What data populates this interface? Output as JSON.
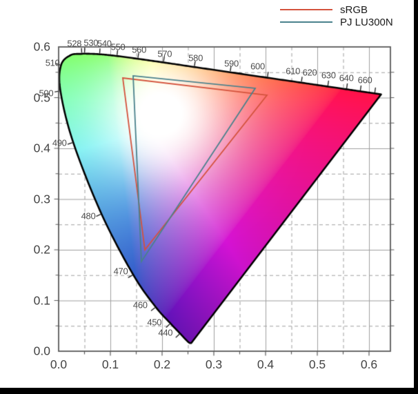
{
  "legend": {
    "items": [
      {
        "label": "sRGB",
        "color": "#d4523c"
      },
      {
        "label": "PJ LU300N",
        "color": "#49818c"
      }
    ]
  },
  "chart_data": {
    "type": "area",
    "variant": "CIE 1976 UCS chromaticity diagram (u'v') with colour gamut triangles",
    "title": "",
    "xlabel": "",
    "ylabel": "",
    "xlim": [
      0.0,
      0.6413
    ],
    "ylim": [
      0.0,
      0.6
    ],
    "grid": "solid major every 0.1, dashed minor every 0.05",
    "legend_position": "top-right",
    "x_ticks": [
      "0.0",
      "0.1",
      "0.2",
      "0.3",
      "0.4",
      "0.5",
      "0.6"
    ],
    "y_ticks": [
      "0.0",
      "0.1",
      "0.2",
      "0.3",
      "0.4",
      "0.5",
      "0.6"
    ],
    "wavelength_labels": [
      "440",
      "450",
      "460",
      "470",
      "480",
      "490",
      "500",
      "510",
      "528",
      "530",
      "540",
      "550",
      "560",
      "570",
      "580",
      "590",
      "600",
      "610",
      "620",
      "630",
      "640",
      "660"
    ],
    "spectral_locus": [
      {
        "wl": 380,
        "u": 0.2568,
        "v": 0.0166
      },
      {
        "wl": 400,
        "u": 0.2557,
        "v": 0.0159
      },
      {
        "wl": 420,
        "u": 0.2522,
        "v": 0.0169
      },
      {
        "wl": 430,
        "u": 0.2461,
        "v": 0.0226
      },
      {
        "wl": 440,
        "u": 0.2347,
        "v": 0.035
      },
      {
        "wl": 450,
        "u": 0.2161,
        "v": 0.0549
      },
      {
        "wl": 460,
        "u": 0.1877,
        "v": 0.0871
      },
      {
        "wl": 470,
        "u": 0.1441,
        "v": 0.151
      },
      {
        "wl": 480,
        "u": 0.0828,
        "v": 0.2708
      },
      {
        "wl": 490,
        "u": 0.0282,
        "v": 0.4117
      },
      {
        "wl": 500,
        "u": 0.0035,
        "v": 0.5131
      },
      {
        "wl": 510,
        "u": 0.0046,
        "v": 0.5638
      },
      {
        "wl": 520,
        "u": 0.0231,
        "v": 0.5837
      },
      {
        "wl": 528,
        "u": 0.0448,
        "v": 0.5863
      },
      {
        "wl": 530,
        "u": 0.0501,
        "v": 0.5867
      },
      {
        "wl": 540,
        "u": 0.0792,
        "v": 0.5856
      },
      {
        "wl": 550,
        "u": 0.1127,
        "v": 0.5821
      },
      {
        "wl": 560,
        "u": 0.1531,
        "v": 0.5766
      },
      {
        "wl": 570,
        "u": 0.2026,
        "v": 0.5694
      },
      {
        "wl": 580,
        "u": 0.2623,
        "v": 0.5604
      },
      {
        "wl": 590,
        "u": 0.3315,
        "v": 0.5501
      },
      {
        "wl": 600,
        "u": 0.4035,
        "v": 0.5393
      },
      {
        "wl": 610,
        "u": 0.4691,
        "v": 0.5296
      },
      {
        "wl": 620,
        "u": 0.5202,
        "v": 0.5219
      },
      {
        "wl": 630,
        "u": 0.5565,
        "v": 0.5165
      },
      {
        "wl": 640,
        "u": 0.583,
        "v": 0.5125
      },
      {
        "wl": 650,
        "u": 0.6005,
        "v": 0.5099
      },
      {
        "wl": 660,
        "u": 0.6109,
        "v": 0.5084
      },
      {
        "wl": 680,
        "u": 0.6199,
        "v": 0.507
      },
      {
        "wl": 700,
        "u": 0.6234,
        "v": 0.5065
      }
    ],
    "series": [
      {
        "name": "sRGB",
        "color": "#d4523c",
        "vertices": [
          [
            0.124,
            0.5388
          ],
          [
            0.4027,
            0.5048
          ],
          [
            0.1667,
            0.2
          ]
        ]
      },
      {
        "name": "PJ LU300N",
        "color": "#49818c",
        "vertices": [
          [
            0.144,
            0.5429
          ],
          [
            0.38,
            0.5184
          ],
          [
            0.16,
            0.1769
          ]
        ]
      }
    ],
    "colors": {
      "grid": "#9e9e9e",
      "spine": "#5a5a5a",
      "locus_outline": "#000000",
      "axis_tick_label": "#444444",
      "wavelength_label": "#4d4d4d",
      "frame_border": "#000000",
      "background": "#ffffff"
    }
  }
}
